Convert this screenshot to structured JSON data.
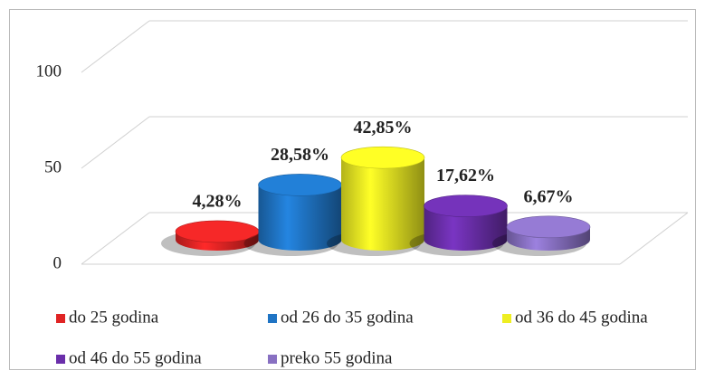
{
  "chart_data": {
    "type": "bar3d",
    "series": [
      {
        "name": "do 25 godina",
        "color": "#e02424",
        "values": [
          4.28
        ],
        "value_labels": [
          "4,28%"
        ]
      },
      {
        "name": "od 26 do 35 godina",
        "color": "#1f74c4",
        "values": [
          28.58
        ],
        "value_labels": [
          "28,58%"
        ]
      },
      {
        "name": "od 36 do 45 godina",
        "color": "#eeee22",
        "values": [
          42.85
        ],
        "value_labels": [
          "42,85%"
        ]
      },
      {
        "name": "od 46 do 55 godina",
        "color": "#6a2eaa",
        "values": [
          17.62
        ],
        "value_labels": [
          "17,62%"
        ]
      },
      {
        "name": "preko 55 godina",
        "color": "#8870c2",
        "values": [
          6.67
        ],
        "value_labels": [
          "6,67%"
        ]
      }
    ],
    "ylim": [
      0,
      100
    ],
    "yticks": [
      0,
      50,
      100
    ],
    "grid": true,
    "legend": "bottom"
  }
}
